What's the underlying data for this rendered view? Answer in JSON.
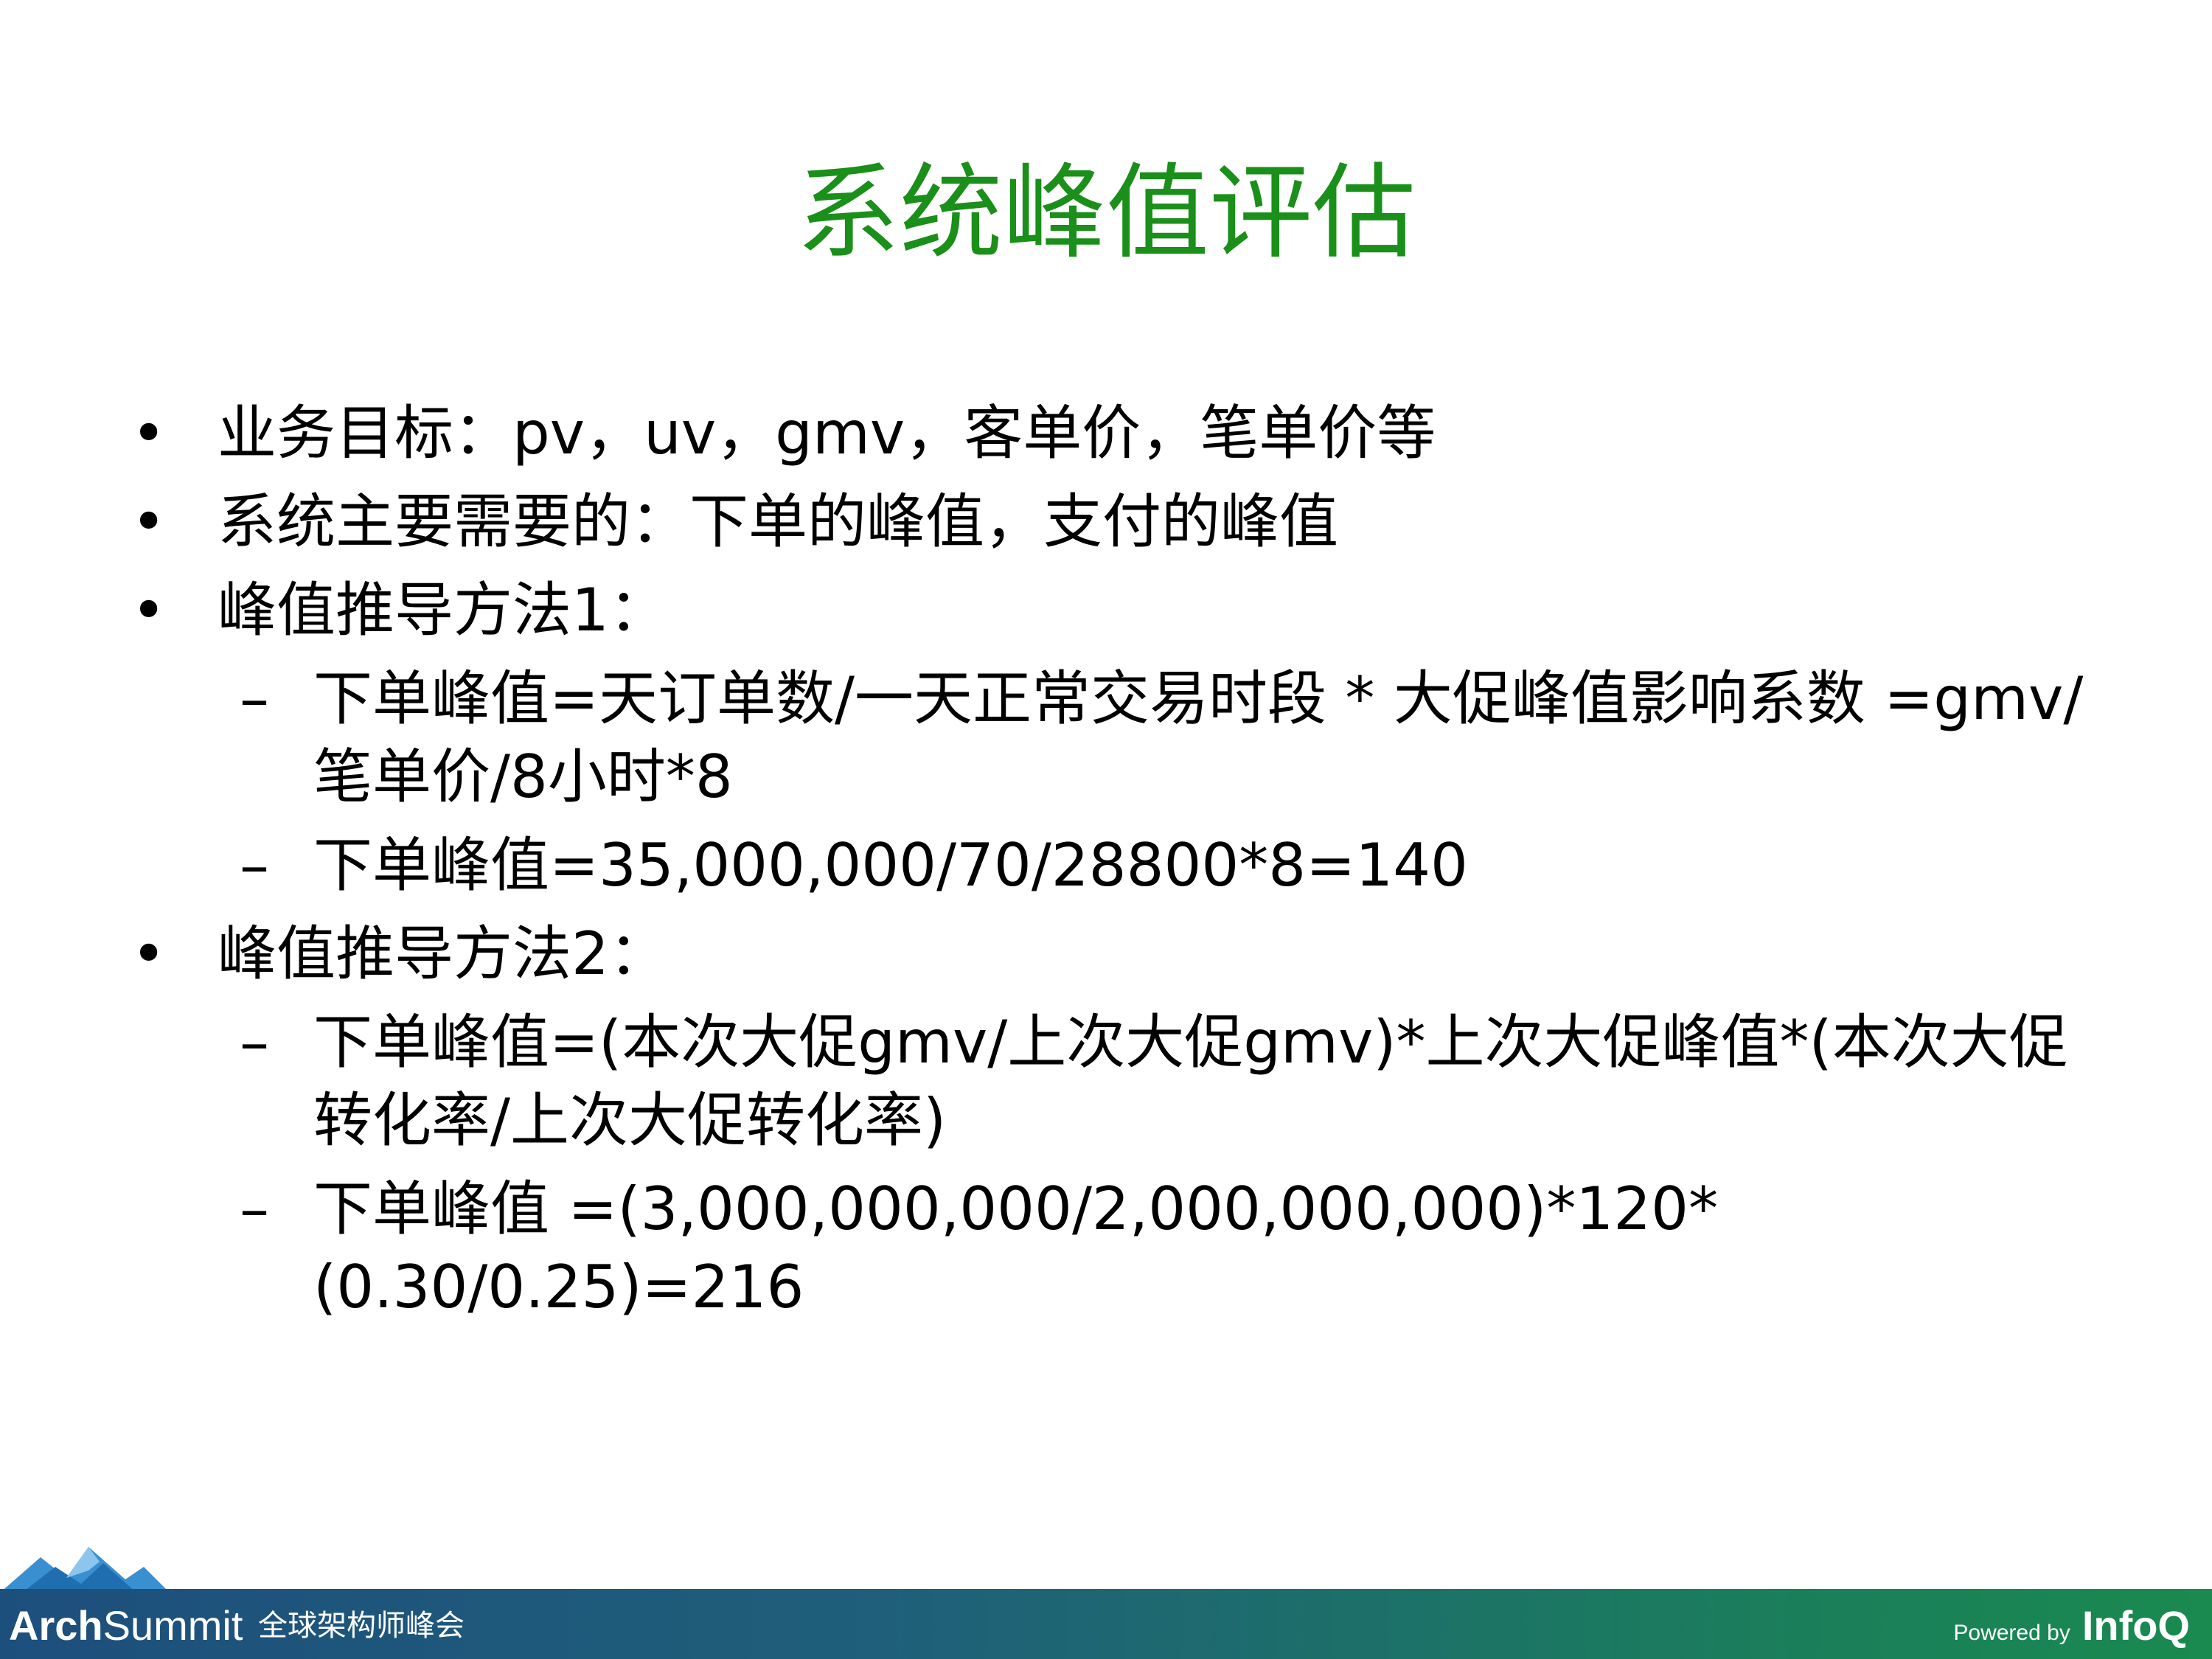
{
  "title": "系统峰值评估",
  "bullets": [
    {
      "level": 1,
      "marker": "•",
      "text": "业务目标：pv，uv，gmv，客单价，笔单价等"
    },
    {
      "level": 1,
      "marker": "•",
      "text": "系统主要需要的：下单的峰值，支付的峰值"
    },
    {
      "level": 1,
      "marker": "•",
      "text": "峰值推导方法1："
    },
    {
      "level": 2,
      "marker": "–",
      "text": "下单峰值=天订单数/一天正常交易时段 * 大促峰值影响系数 =gmv/笔单价/8小时*8"
    },
    {
      "level": 2,
      "marker": "–",
      "text": "下单峰值=35,000,000/70/28800*8=140"
    },
    {
      "level": 1,
      "marker": "•",
      "text": "峰值推导方法2："
    },
    {
      "level": 2,
      "marker": "–",
      "text": "下单峰值=(本次大促gmv/上次大促gmv)*上次大促峰值*(本次大促转化率/上次大促转化率)"
    },
    {
      "level": 2,
      "marker": "–",
      "text": "下单峰值 =(3,000,000,000/2,000,000,000)*120*(0.30/0.25)=216"
    }
  ],
  "footer": {
    "brand_bold": "Arch",
    "brand_rest": "Summit",
    "brand_sub": "全球架构师峰会",
    "powered_by": "Powered by",
    "partner": "InfoQ"
  },
  "colors": {
    "title": "#1a8f1a",
    "footer_start": "#1d4f7c",
    "footer_end": "#1a8a4f"
  }
}
